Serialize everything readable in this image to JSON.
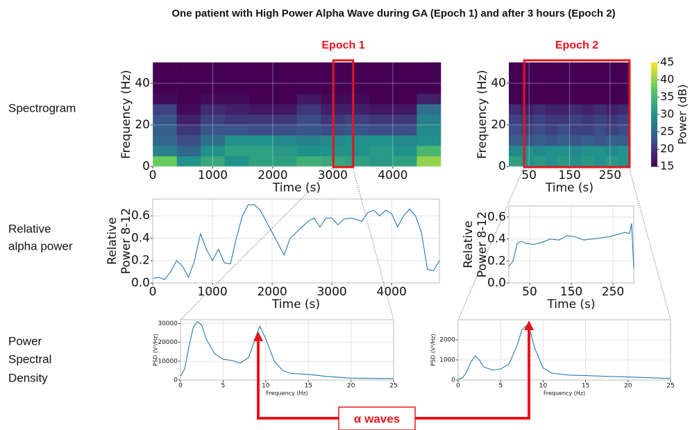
{
  "title": "One patient with High Power Alpha Wave during GA (Epoch 1) and after 3 hours (Epoch 2)",
  "row_labels": [
    [
      "Spectrogram"
    ],
    [
      "Relative",
      "alpha power"
    ],
    [
      "Power",
      "Spectral",
      "Density"
    ]
  ],
  "annotation": "α waves",
  "chart_data": [
    {
      "type": "spectrogram",
      "title": "Epoch 1",
      "xlabel": "Time (s)",
      "ylabel": "Frequency (Hz)",
      "time_bins": [
        0,
        400,
        800,
        1200,
        1600,
        2000,
        2400,
        2800,
        3200,
        3600,
        4000,
        4400,
        4800
      ],
      "freq_bins": [
        0,
        5,
        10,
        15,
        20,
        25,
        30,
        35,
        40,
        45,
        50
      ],
      "z": [
        [
          38,
          30,
          33,
          30,
          32,
          32,
          34,
          33,
          32,
          31,
          32,
          40
        ],
        [
          28,
          25,
          30,
          32,
          32,
          31,
          30,
          30,
          30,
          31,
          30,
          35
        ],
        [
          25,
          22,
          26,
          30,
          30,
          29,
          28,
          29,
          30,
          30,
          29,
          30
        ],
        [
          24,
          20,
          23,
          23,
          22,
          22,
          23,
          22,
          23,
          22,
          22,
          29
        ],
        [
          23,
          18,
          21,
          20,
          20,
          20,
          22,
          20,
          21,
          20,
          20,
          28
        ],
        [
          21,
          16,
          19,
          18,
          17,
          17,
          20,
          18,
          18,
          17,
          17,
          26
        ],
        [
          16,
          15,
          16,
          16,
          15,
          15,
          17,
          16,
          16,
          15,
          15,
          18
        ],
        [
          15,
          15,
          15,
          15,
          15,
          15,
          15,
          15,
          15,
          15,
          15,
          15
        ],
        [
          15,
          15,
          15,
          15,
          15,
          15,
          15,
          15,
          15,
          15,
          15,
          15
        ],
        [
          15,
          15,
          15,
          15,
          15,
          15,
          15,
          15,
          15,
          15,
          15,
          15
        ]
      ],
      "zlim": [
        15,
        45
      ],
      "xlim": [
        0,
        4800
      ],
      "ylim": [
        0,
        50
      ],
      "xticks": [
        0,
        1000,
        2000,
        3000,
        4000
      ],
      "yticks": [
        0,
        20,
        40
      ],
      "grid": true,
      "highlight": [
        3010,
        3340
      ],
      "highlight_color": "#e8141c"
    },
    {
      "type": "spectrogram",
      "title": "Epoch 2",
      "xlabel": "Time (s)",
      "ylabel": "Frequency (Hz)",
      "time_bins": [
        0,
        30,
        60,
        90,
        120,
        150,
        180,
        210,
        240,
        270,
        300
      ],
      "freq_bins": [
        0,
        5,
        10,
        15,
        20,
        25,
        30,
        35,
        40,
        45,
        50
      ],
      "z": [
        [
          32,
          30,
          31,
          30,
          31,
          30,
          31,
          30,
          31,
          30
        ],
        [
          29,
          30,
          29,
          30,
          30,
          29,
          30,
          30,
          29,
          30
        ],
        [
          24,
          23,
          24,
          23,
          24,
          23,
          24,
          23,
          24,
          24
        ],
        [
          22,
          21,
          22,
          21,
          22,
          21,
          21,
          22,
          21,
          22
        ],
        [
          21,
          20,
          21,
          20,
          20,
          21,
          20,
          21,
          20,
          21
        ],
        [
          19,
          18,
          19,
          18,
          18,
          19,
          18,
          19,
          18,
          19
        ],
        [
          15,
          15,
          15,
          15,
          15,
          15,
          15,
          15,
          15,
          15
        ],
        [
          15,
          15,
          15,
          15,
          15,
          15,
          15,
          15,
          15,
          15
        ],
        [
          15,
          15,
          15,
          15,
          15,
          15,
          15,
          15,
          15,
          15
        ],
        [
          15,
          15,
          15,
          15,
          15,
          15,
          15,
          15,
          15,
          15
        ]
      ],
      "zlim": [
        15,
        45
      ],
      "xlim": [
        0,
        300
      ],
      "ylim": [
        0,
        50
      ],
      "xticks": [
        50,
        150,
        250
      ],
      "yticks": [
        0,
        20,
        40
      ],
      "grid": true,
      "highlight": [
        38,
        298
      ],
      "highlight_color": "#e8141c",
      "colorbar": {
        "label": "Power (dB)",
        "ticks": [
          15,
          20,
          25,
          30,
          35,
          40,
          45
        ]
      }
    },
    {
      "type": "line",
      "xlabel": "Time (s)",
      "ylabel": [
        "Relative",
        "Power 8-12"
      ],
      "color": "#1f77b4",
      "x": [
        0,
        100,
        200,
        300,
        400,
        500,
        600,
        700,
        800,
        900,
        1000,
        1100,
        1200,
        1300,
        1400,
        1500,
        1600,
        1700,
        1800,
        1900,
        2000,
        2100,
        2200,
        2300,
        2400,
        2500,
        2600,
        2700,
        2800,
        2900,
        3000,
        3100,
        3200,
        3300,
        3400,
        3500,
        3600,
        3700,
        3800,
        3900,
        4000,
        4100,
        4200,
        4300,
        4400,
        4500,
        4600,
        4700,
        4800
      ],
      "values": [
        0.04,
        0.05,
        0.03,
        0.1,
        0.2,
        0.15,
        0.05,
        0.2,
        0.44,
        0.3,
        0.2,
        0.3,
        0.18,
        0.17,
        0.4,
        0.6,
        0.7,
        0.7,
        0.65,
        0.55,
        0.45,
        0.35,
        0.25,
        0.4,
        0.45,
        0.5,
        0.55,
        0.58,
        0.5,
        0.58,
        0.58,
        0.52,
        0.57,
        0.58,
        0.57,
        0.55,
        0.63,
        0.65,
        0.6,
        0.65,
        0.62,
        0.5,
        0.6,
        0.66,
        0.6,
        0.45,
        0.12,
        0.11,
        0.2
      ],
      "xlim": [
        0,
        4800
      ],
      "ylim": [
        0,
        0.75
      ],
      "xticks": [
        0,
        1000,
        2000,
        3000,
        4000
      ],
      "yticks": [
        {
          "value": 0,
          "label": "0.0"
        },
        0.2,
        0.4,
        0.6
      ],
      "grid": true
    },
    {
      "type": "line",
      "xlabel": "Time (s)",
      "ylabel": [
        "Relative",
        "Power 8-12"
      ],
      "color": "#1f77b4",
      "x": [
        0,
        10,
        20,
        30,
        40,
        60,
        80,
        100,
        120,
        140,
        160,
        180,
        200,
        220,
        240,
        260,
        280,
        290,
        295,
        300
      ],
      "values": [
        0.15,
        0.2,
        0.36,
        0.38,
        0.36,
        0.35,
        0.37,
        0.4,
        0.39,
        0.43,
        0.42,
        0.39,
        0.4,
        0.41,
        0.42,
        0.44,
        0.46,
        0.45,
        0.54,
        0.13
      ],
      "xlim": [
        0,
        300
      ],
      "ylim": [
        0,
        0.7
      ],
      "xticks": [
        50,
        150,
        250
      ],
      "yticks": [
        {
          "value": 0,
          "label": "0.0"
        },
        0.2,
        0.4,
        0.6
      ],
      "grid": true
    },
    {
      "type": "line",
      "xlabel": "Frequency (Hz)",
      "ylabel": [
        "PSD (V²/Hz)"
      ],
      "color": "#1f77b4",
      "x": [
        0,
        0.5,
        1,
        1.5,
        2,
        2.5,
        3,
        4,
        5,
        6,
        7,
        8,
        9,
        9.3,
        10,
        11,
        12,
        13,
        15,
        17,
        20,
        25
      ],
      "values": [
        2000,
        6000,
        18000,
        28000,
        31000,
        29000,
        22000,
        14000,
        11000,
        10500,
        9000,
        12000,
        25000,
        28500,
        22000,
        10000,
        5000,
        3500,
        3000,
        2000,
        1000,
        800
      ],
      "xlim": [
        0,
        25
      ],
      "ylim": [
        0,
        32000
      ],
      "xticks": [
        0,
        5,
        10,
        15,
        20,
        25
      ],
      "yticks": [
        0,
        10000,
        20000,
        30000
      ],
      "grid": true
    },
    {
      "type": "line",
      "xlabel": "Frequency (Hz)",
      "ylabel": [
        "PSD (V²/Hz)"
      ],
      "color": "#1f77b4",
      "x": [
        0,
        0.5,
        1,
        1.5,
        2,
        2.5,
        3,
        4,
        5,
        6,
        7,
        7.5,
        8,
        8.5,
        9,
        10,
        11,
        13,
        15,
        20,
        25
      ],
      "values": [
        50,
        100,
        400,
        900,
        1200,
        1000,
        650,
        500,
        550,
        800,
        1800,
        2500,
        2700,
        2400,
        1600,
        600,
        350,
        250,
        220,
        150,
        80
      ],
      "xlim": [
        0,
        25
      ],
      "ylim": [
        0,
        3000
      ],
      "xticks": [
        0,
        5,
        10,
        15,
        20,
        25
      ],
      "yticks": [
        0,
        1000,
        2000
      ],
      "grid": true
    }
  ]
}
